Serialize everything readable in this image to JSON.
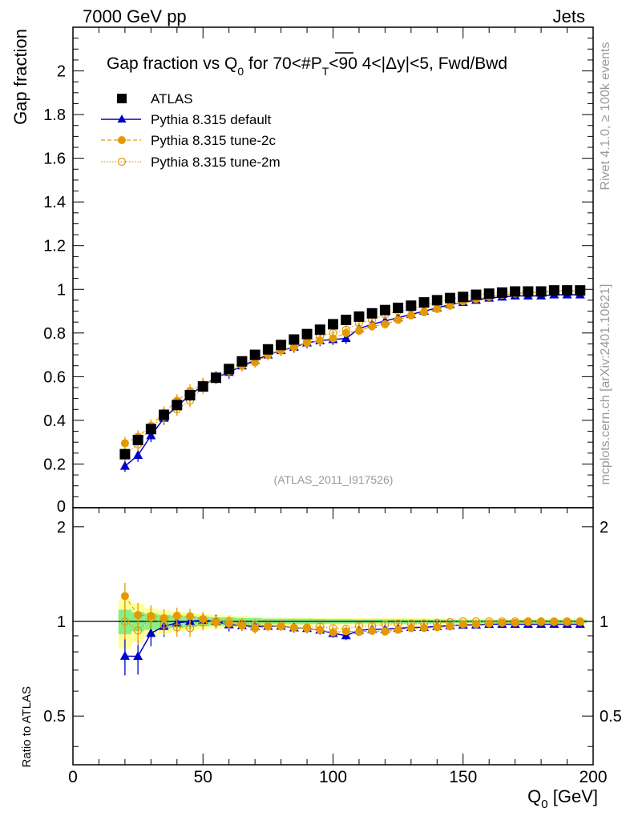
{
  "header": {
    "left": "7000 GeV pp",
    "right": "Jets",
    "side_rivet": "Rivet 4.1.0, ≥ 100k events",
    "side_mcplots": "mcplots.cern.ch [arXiv:2401.10621]"
  },
  "chart_data": {
    "type": "scatter",
    "title": "Gap fraction vs Q0 for 70<#PT<90  4<|Δy|<5, Fwd/Bwd",
    "title_parts": {
      "a": "Gap fraction vs Q",
      "a_sub": "0",
      "b": " for 70<#",
      "b_over": "P",
      "b_sub": "T",
      "c": "<90  4<|Δy|<5, Fwd/Bwd"
    },
    "analysis_label": "(ATLAS_2011_I917526)",
    "xlabel": "Q0 [GeV]",
    "xlabel_main": "Q",
    "xlabel_sub": "0",
    "xlabel_unit": " [GeV]",
    "ylabel": "Gap fraction",
    "ratio_ylabel": "Ratio to ATLAS",
    "xlim": [
      0,
      200
    ],
    "ylim": [
      0,
      2.2
    ],
    "ratio_ylim": [
      0.35,
      2.3
    ],
    "x_ticks": [
      "0",
      "50",
      "100",
      "150",
      "200"
    ],
    "x_tick_values": [
      0,
      50,
      100,
      150,
      200
    ],
    "y_ticks": [
      "0.2",
      "0.4",
      "0.6",
      "0.8",
      "1",
      "1.2",
      "1.4",
      "1.6",
      "1.8",
      "2"
    ],
    "y_tick_values": [
      0.2,
      0.4,
      0.6,
      0.8,
      1.0,
      1.2,
      1.4,
      1.6,
      1.8,
      2.0
    ],
    "y_tick_zero": "0",
    "ratio_y_ticks": [
      "0.5",
      "1",
      "2"
    ],
    "ratio_y_tick_values": [
      0.5,
      1.0,
      2.0
    ],
    "x": [
      20,
      25,
      30,
      35,
      40,
      45,
      50,
      55,
      60,
      65,
      70,
      75,
      80,
      85,
      90,
      95,
      100,
      105,
      110,
      115,
      120,
      125,
      130,
      135,
      140,
      145,
      150,
      155,
      160,
      165,
      170,
      175,
      180,
      185,
      190,
      195
    ],
    "legend": [
      {
        "name": "ATLAS",
        "marker": "filled-square",
        "color": "#000000"
      },
      {
        "name": "Pythia 8.315 default",
        "marker": "filled-triangle",
        "color": "#0000cc"
      },
      {
        "name": "Pythia 8.315 tune-2c",
        "marker": "filled-circle",
        "color": "#e59900"
      },
      {
        "name": "Pythia 8.315 tune-2m",
        "marker": "open-circle",
        "color": "#e59900"
      }
    ],
    "series": [
      {
        "name": "ATLAS",
        "color": "#000000",
        "values": [
          0.245,
          0.31,
          0.36,
          0.425,
          0.47,
          0.515,
          0.555,
          0.595,
          0.635,
          0.67,
          0.7,
          0.725,
          0.745,
          0.77,
          0.795,
          0.815,
          0.84,
          0.86,
          0.875,
          0.89,
          0.905,
          0.915,
          0.925,
          0.94,
          0.95,
          0.96,
          0.965,
          0.975,
          0.98,
          0.985,
          0.99,
          0.99,
          0.99,
          0.995,
          0.995,
          0.995
        ],
        "errors": [
          0.02,
          0.02,
          0.02,
          0.02,
          0.02,
          0.02,
          0.02,
          0.02,
          0.02,
          0.015,
          0.015,
          0.015,
          0.015,
          0.015,
          0.015,
          0.015,
          0.01,
          0.01,
          0.01,
          0.01,
          0.01,
          0.01,
          0.01,
          0.01,
          0.01,
          0.01,
          0.01,
          0.005,
          0.005,
          0.005,
          0.005,
          0.005,
          0.005,
          0.005,
          0.005,
          0.005
        ]
      },
      {
        "name": "Pythia 8.315 default",
        "color": "#0000cc",
        "values": [
          0.19,
          0.24,
          0.33,
          0.41,
          0.465,
          0.515,
          0.56,
          0.595,
          0.62,
          0.65,
          0.675,
          0.7,
          0.72,
          0.735,
          0.755,
          0.765,
          0.77,
          0.775,
          0.82,
          0.84,
          0.855,
          0.87,
          0.885,
          0.9,
          0.915,
          0.93,
          0.94,
          0.95,
          0.96,
          0.965,
          0.97,
          0.97,
          0.97,
          0.975,
          0.975,
          0.975
        ],
        "errors": [
          0.025,
          0.03,
          0.03,
          0.03,
          0.03,
          0.03,
          0.03,
          0.03,
          0.03,
          0.025,
          0.025,
          0.025,
          0.025,
          0.025,
          0.025,
          0.025,
          0.025,
          0.025,
          0.02,
          0.02,
          0.02,
          0.02,
          0.02,
          0.02,
          0.015,
          0.015,
          0.015,
          0.015,
          0.01,
          0.01,
          0.01,
          0.01,
          0.01,
          0.01,
          0.01,
          0.01
        ]
      },
      {
        "name": "Pythia 8.315 tune-2c",
        "color": "#e59900",
        "values": [
          0.295,
          0.325,
          0.375,
          0.435,
          0.49,
          0.535,
          0.565,
          0.59,
          0.625,
          0.65,
          0.665,
          0.7,
          0.72,
          0.735,
          0.755,
          0.765,
          0.775,
          0.8,
          0.81,
          0.83,
          0.84,
          0.86,
          0.88,
          0.895,
          0.91,
          0.925,
          0.945,
          0.955,
          0.965,
          0.975,
          0.98,
          0.985,
          0.985,
          0.99,
          0.99,
          0.99
        ],
        "errors": [
          0.03,
          0.03,
          0.03,
          0.03,
          0.03,
          0.03,
          0.03,
          0.025,
          0.025,
          0.025,
          0.025,
          0.025,
          0.025,
          0.02,
          0.02,
          0.02,
          0.02,
          0.02,
          0.02,
          0.02,
          0.02,
          0.015,
          0.015,
          0.015,
          0.015,
          0.01,
          0.01,
          0.01,
          0.01,
          0.01,
          0.01,
          0.01,
          0.01,
          0.01,
          0.01,
          0.01
        ]
      },
      {
        "name": "Pythia 8.315 tune-2m",
        "color": "#e59900",
        "values": [
          0.245,
          0.29,
          0.37,
          0.415,
          0.45,
          0.49,
          0.55,
          0.595,
          0.635,
          0.66,
          0.685,
          0.7,
          0.72,
          0.735,
          0.76,
          0.785,
          0.8,
          0.815,
          0.845,
          0.86,
          0.885,
          0.9,
          0.91,
          0.925,
          0.94,
          0.955,
          0.965,
          0.975,
          0.98,
          0.985,
          0.99,
          0.99,
          0.99,
          0.995,
          0.995,
          0.995
        ],
        "errors": [
          0.03,
          0.03,
          0.03,
          0.03,
          0.03,
          0.03,
          0.03,
          0.025,
          0.025,
          0.025,
          0.025,
          0.025,
          0.025,
          0.02,
          0.02,
          0.02,
          0.02,
          0.02,
          0.02,
          0.02,
          0.02,
          0.015,
          0.015,
          0.015,
          0.015,
          0.01,
          0.01,
          0.01,
          0.01,
          0.01,
          0.01,
          0.01,
          0.01,
          0.01,
          0.01,
          0.01
        ]
      }
    ],
    "ratio_band": {
      "stat_fraction": [
        0.09,
        0.07,
        0.06,
        0.05,
        0.045,
        0.04,
        0.035,
        0.03,
        0.03,
        0.025,
        0.025,
        0.02,
        0.02,
        0.02,
        0.02,
        0.018,
        0.016,
        0.016,
        0.015,
        0.015,
        0.015,
        0.015,
        0.014,
        0.014,
        0.013,
        0.013,
        0.012,
        0.012,
        0.012,
        0.012,
        0.012,
        0.012,
        0.012,
        0.012,
        0.012,
        0.012
      ],
      "total_fraction": [
        0.18,
        0.14,
        0.1,
        0.085,
        0.075,
        0.065,
        0.055,
        0.05,
        0.045,
        0.04,
        0.035,
        0.03,
        0.03,
        0.028,
        0.028,
        0.026,
        0.025,
        0.024,
        0.024,
        0.024,
        0.024,
        0.024,
        0.024,
        0.024,
        0.022,
        0.02,
        0.02,
        0.02,
        0.02,
        0.02,
        0.02,
        0.02,
        0.02,
        0.02,
        0.02,
        0.02
      ],
      "stat_color": "#88ee88",
      "total_color": "#ffff99"
    }
  }
}
